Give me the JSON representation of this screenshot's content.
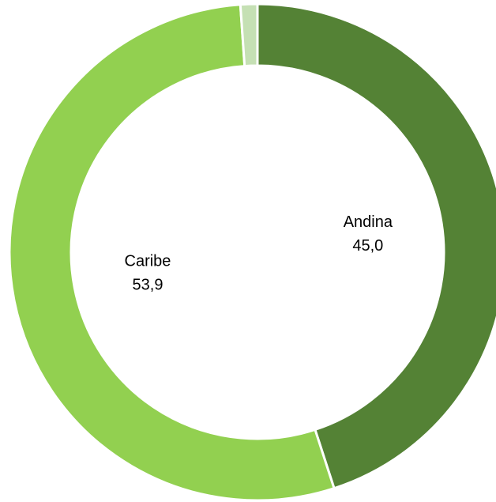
{
  "chart_data": {
    "type": "donut",
    "categories": [
      "Andina",
      "Caribe",
      null
    ],
    "values": [
      45.0,
      53.9,
      1.1
    ],
    "value_labels": [
      "45,0",
      "53,9",
      null
    ],
    "colors": [
      "#548235",
      "#92d050",
      "#c5e0b4"
    ]
  }
}
